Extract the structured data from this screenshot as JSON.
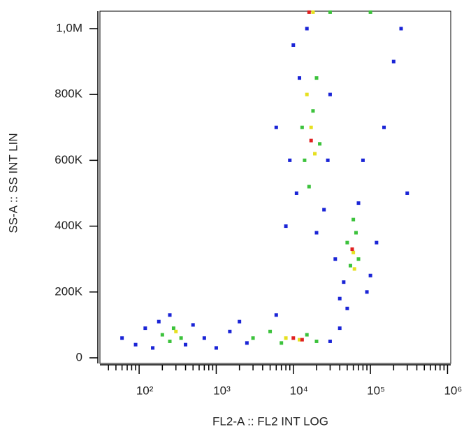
{
  "chart_data": {
    "type": "scatter",
    "x_label": "FL2-A :: FL2 INT LOG",
    "y_label": "SS-A :: SS INT LIN",
    "xscale": "log",
    "xlim": [
      31,
      1100000
    ],
    "ylim": [
      -17000,
      1053000
    ],
    "xticks": [
      {
        "value": 100,
        "label": "10²"
      },
      {
        "value": 1000,
        "label": "10³"
      },
      {
        "value": 10000,
        "label": "10⁴"
      },
      {
        "value": 100000,
        "label": "10⁵"
      },
      {
        "value": 1000000,
        "label": "10⁶"
      }
    ],
    "yticks": [
      0,
      {
        "value": 200000,
        "label": "200K"
      },
      {
        "value": 400000,
        "label": "400K"
      },
      {
        "value": 600000,
        "label": "600K"
      },
      {
        "value": 800000,
        "label": "800K"
      },
      {
        "value": 1000000,
        "label": "1,0M"
      }
    ],
    "series": [
      {
        "color": "#1a24d6",
        "x": [
          60,
          90,
          120,
          150,
          180,
          250,
          400,
          500,
          700,
          1000,
          1500,
          2000,
          2500,
          30000,
          40000,
          6000,
          8000,
          9000,
          11000,
          12000,
          10000,
          25000,
          30000,
          28000,
          15000,
          20000,
          35000,
          40000,
          50000,
          90000,
          100000,
          120000,
          70000,
          150000,
          200000,
          300000,
          80000,
          250000,
          45000,
          6000
        ],
        "values": [
          60000,
          40000,
          90000,
          30000,
          110000,
          130000,
          40000,
          100000,
          60000,
          30000,
          80000,
          110000,
          45000,
          50000,
          90000,
          130000,
          400000,
          600000,
          500000,
          850000,
          950000,
          450000,
          800000,
          600000,
          1000000,
          380000,
          300000,
          180000,
          150000,
          200000,
          250000,
          350000,
          470000,
          700000,
          900000,
          500000,
          600000,
          1000000,
          230000,
          700000
        ]
      },
      {
        "color": "#3cc23c",
        "x": [
          200,
          280,
          350,
          250,
          3000,
          5000,
          7000,
          15000,
          20000,
          14000,
          18000,
          20000,
          16000,
          22000,
          13000,
          55000,
          65000,
          50000,
          70000,
          60000,
          30000,
          100000
        ],
        "values": [
          70000,
          90000,
          60000,
          50000,
          60000,
          80000,
          45000,
          70000,
          50000,
          600000,
          750000,
          850000,
          520000,
          650000,
          700000,
          280000,
          380000,
          350000,
          300000,
          420000,
          1050000,
          1050000
        ]
      },
      {
        "color": "#e6e020",
        "x": [
          300,
          8000,
          12000,
          17000,
          19000,
          15000,
          60000,
          62000,
          18000
        ],
        "values": [
          80000,
          60000,
          55000,
          700000,
          620000,
          800000,
          320000,
          270000,
          1050000
        ]
      },
      {
        "color": "#e02020",
        "x": [
          10000,
          13000,
          16000,
          58000,
          17000
        ],
        "values": [
          60000,
          55000,
          1050000,
          330000,
          660000
        ]
      }
    ]
  }
}
